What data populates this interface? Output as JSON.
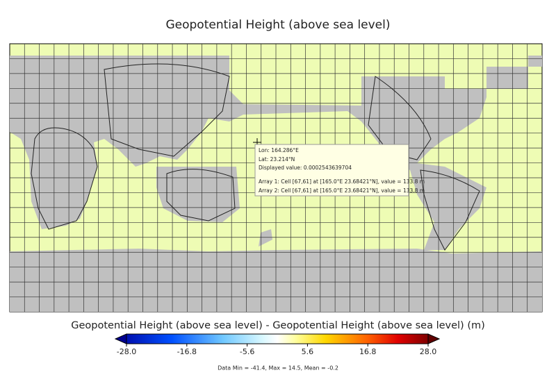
{
  "title": "Geopotential Height (above sea level)",
  "tooltip": {
    "lines": [
      "Lon: 164.286°E",
      "Lat: 23.214°N",
      "Displayed value: 0.0002543639704",
      "Array 1: Cell  [67,61] at [165.0°E 23.68421°N], value = 133.8 m",
      "Array 2: Cell  [67,61] at [165.0°E 23.68421°N], value = 133.8 m"
    ]
  },
  "colorbar": {
    "label": "Geopotential Height (above sea level) - Geopotential Height (above sea level) (m)",
    "ticks": [
      {
        "value": -28,
        "label": "-28.0"
      },
      {
        "value": -16.8,
        "label": "-16.8"
      },
      {
        "value": -5.6,
        "label": "-5.6"
      },
      {
        "value": 5.6,
        "label": "5.6"
      },
      {
        "value": 16.8,
        "label": "16.8"
      },
      {
        "value": 28,
        "label": "28.0"
      }
    ]
  },
  "stats": "Data Min = -41.4, Max = 14.5, Mean = -0.2"
}
